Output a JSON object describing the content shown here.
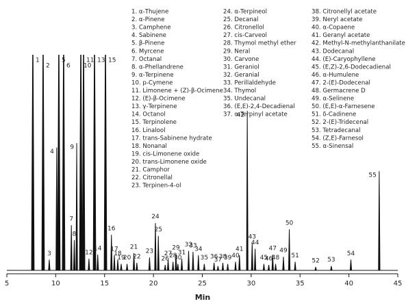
{
  "chart_data": {
    "type": "chromatogram",
    "xlabel": "Min",
    "xlim": [
      5,
      45
    ],
    "xticks": [
      5,
      10,
      15,
      20,
      25,
      30,
      35,
      40,
      45
    ],
    "ylim": [
      0,
      100
    ],
    "color": "#111111",
    "peak_labels": [
      "1",
      "2",
      "3",
      "4",
      "5",
      "6",
      "7",
      "8",
      "9",
      "10",
      "11",
      "12",
      "13",
      "14",
      "15",
      "16",
      "17",
      "18",
      "19",
      "20",
      "21",
      "22",
      "23",
      "24",
      "25",
      "26",
      "27",
      "28",
      "29",
      "30",
      "31",
      "32",
      "33",
      "34",
      "35",
      "36",
      "37",
      "38",
      "39",
      "40",
      "41",
      "42",
      "43",
      "44",
      "45",
      "46",
      "47",
      "48",
      "49",
      "50",
      "51",
      "52",
      "53",
      "54",
      "55"
    ],
    "x": [
      7.66,
      8.71,
      9.34,
      10.1,
      10.32,
      10.81,
      11.6,
      11.9,
      12.15,
      12.57,
      12.85,
      13.4,
      13.97,
      14.3,
      15.09,
      15.7,
      16.0,
      16.35,
      16.7,
      17.3,
      18.0,
      18.3,
      19.6,
      20.2,
      20.5,
      21.2,
      21.5,
      22.0,
      22.3,
      22.5,
      22.9,
      23.6,
      24.05,
      24.6,
      25.2,
      26.2,
      26.6,
      27.1,
      27.6,
      28.4,
      28.8,
      29.6,
      30.1,
      30.4,
      31.3,
      31.8,
      32.2,
      32.5,
      33.3,
      33.9,
      34.5,
      36.6,
      38.2,
      40.2,
      43.1
    ],
    "values": [
      100,
      100,
      5,
      57,
      100,
      100,
      21,
      14,
      59,
      100,
      100,
      5.4,
      100,
      7.3,
      100,
      16.5,
      7,
      5,
      3,
      3,
      8,
      3.5,
      6,
      22,
      16,
      2.5,
      5,
      4,
      7.6,
      3,
      5.4,
      9,
      8.6,
      7,
      3,
      3.5,
      2,
      3.5,
      3,
      4,
      7,
      74,
      12.7,
      10,
      3,
      2.5,
      7.3,
      3,
      6.3,
      19,
      4,
      1.6,
      2,
      5,
      46
    ],
    "compounds": [
      "1. α-Thujene",
      "2. α-Pinene",
      "3. Camphene",
      "4. Sabinene",
      "5. β-Pinene",
      "6. Myrcene",
      "7. Octanal",
      "8. α-Phellandrene",
      "9. α-Terpinene",
      "10. p-Cymene",
      "11. Limonene + (Z)-β-Ocimene",
      "12. (E)-β-Ocimene",
      "13. γ-Terpinene",
      "14. Octanol",
      "15. Terpinolene",
      "16. Linalool",
      "17. trans-Sabinene hydrate",
      "18. Nonanal",
      "19. cis-Limonene oxide",
      "20. trans-Limonene oxide",
      "21. Camphor",
      "22. Citronellal",
      "23. Terpinen-4-ol",
      "24. α-Terpineol",
      "25. Decanal",
      "26. Citronellol",
      "27. cis-Carveol",
      "28. Thymol methyl ether",
      "29. Neral",
      "30. Carvone",
      "31. Geraniol",
      "32. Geranial",
      "33. Perillaldehyde",
      "34. Thymol",
      "35. Undecanal",
      "36. (E,E)-2,4-Decadienal",
      "37. α-Terpinyl acetate",
      "38. Citronellyl acetate",
      "39. Neryl acetate",
      "40. α-Copaene",
      "41. Geranyl acetate",
      "42. Methyl-N-methylanthanilate",
      "43. Dodecanal",
      "44. (E)-Caryophyllene",
      "45. (E,Z)-2,6-Dodecadienal",
      "46. α-Humulene",
      "47. 2-(E)-Dodecenal",
      "48. Germacrene D",
      "49. α-Selinene",
      "50. (E,E)-α-Farnesene",
      "51. δ-Cadinene",
      "52. 2-(E)-Tridecenal",
      "53. Tetradecanal",
      "54. (Z,E)-Farnesol",
      "55. α-Sinensal"
    ]
  }
}
